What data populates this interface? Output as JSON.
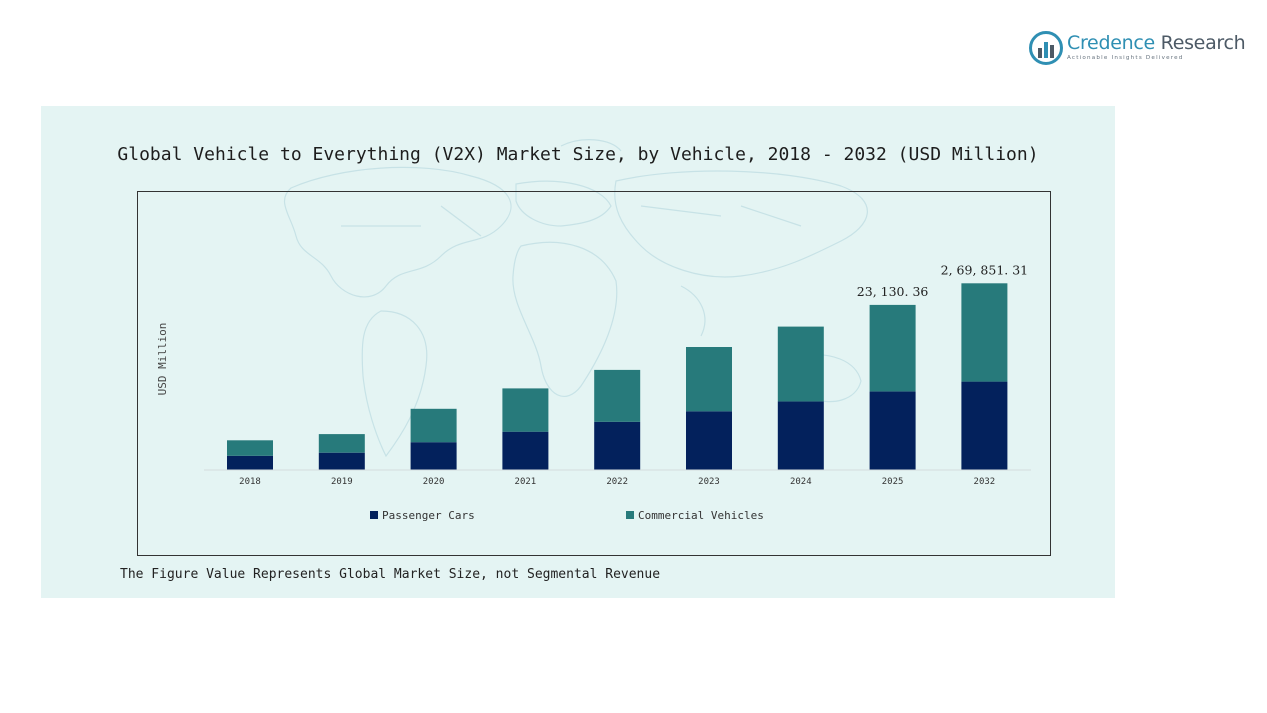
{
  "brand": {
    "name_part1": "Credence",
    "name_part2": "Research",
    "tagline": "Actionable Insights Delivered"
  },
  "colors": {
    "panel_bg": "#e4f4f3",
    "passenger": "#03215c",
    "commercial": "#277a7b",
    "brand_blue": "#2f8fb3",
    "brand_gray": "#4d5a66"
  },
  "footnote": "The Figure Value Represents Global Market Size, not Segmental Revenue",
  "chart_data": {
    "type": "bar",
    "stacked": true,
    "title": "Global Vehicle to Everything (V2X) Market Size, by Vehicle, 2018 - 2032 (USD Million)",
    "ylabel": "USD Million",
    "xlabel": "",
    "categories": [
      "2018",
      "2019",
      "2020",
      "2021",
      "2022",
      "2023",
      "2024",
      "2025",
      "2032"
    ],
    "series": [
      {
        "name": "Passenger Cars",
        "values": [
          2300,
          2800,
          4500,
          6200,
          7800,
          9500,
          11100,
          12700,
          14300
        ],
        "color": "#03215c"
      },
      {
        "name": "Commercial Vehicles",
        "values": [
          2500,
          3000,
          5400,
          7000,
          8400,
          10400,
          12100,
          14000,
          15900
        ],
        "color": "#277a7b"
      }
    ],
    "data_labels": [
      {
        "category": "2025",
        "text": "23, 130. 36"
      },
      {
        "category": "2032",
        "text": "2, 69, 851. 31"
      }
    ],
    "ylim": [
      0,
      33000
    ],
    "grid": false,
    "legend_position": "bottom"
  }
}
